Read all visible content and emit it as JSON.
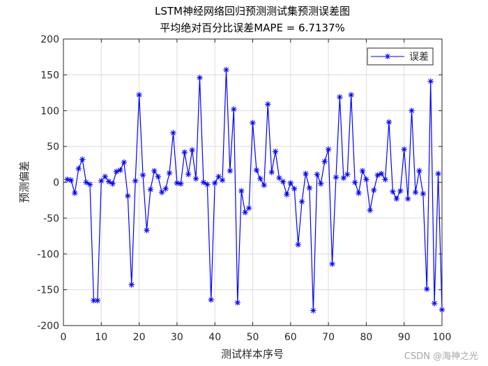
{
  "chart_data": {
    "type": "line",
    "title": "LSTM神经网络回归预测测试集预测误差图",
    "subtitle": "平均绝对百分比误差MAPE = 6.7137%",
    "xlabel": "测试样本序号",
    "ylabel": "预测偏差",
    "xlim": [
      0,
      100
    ],
    "ylim": [
      -200,
      200
    ],
    "xticks": [
      "0",
      "10",
      "20",
      "30",
      "40",
      "50",
      "60",
      "70",
      "80",
      "90",
      "100"
    ],
    "yticks": [
      "-200",
      "-150",
      "-100",
      "-50",
      "0",
      "50",
      "100",
      "150",
      "200"
    ],
    "grid": true,
    "legend_position": "top-right",
    "series": [
      {
        "name": "误差",
        "color": "#0000ff",
        "marker": "asterisk",
        "x": [
          1,
          2,
          3,
          4,
          5,
          6,
          7,
          8,
          9,
          10,
          11,
          12,
          13,
          14,
          15,
          16,
          17,
          18,
          19,
          20,
          21,
          22,
          23,
          24,
          25,
          26,
          27,
          28,
          29,
          30,
          31,
          32,
          33,
          34,
          35,
          36,
          37,
          38,
          39,
          40,
          41,
          42,
          43,
          44,
          45,
          46,
          47,
          48,
          49,
          50,
          51,
          52,
          53,
          54,
          55,
          56,
          57,
          58,
          59,
          60,
          61,
          62,
          63,
          64,
          65,
          66,
          67,
          68,
          69,
          70,
          71,
          72,
          73,
          74,
          75,
          76,
          77,
          78,
          79,
          80,
          81,
          82,
          83,
          84,
          85,
          86,
          87,
          88,
          89,
          90,
          91,
          92,
          93,
          94,
          95,
          96,
          97,
          98,
          99,
          100
        ],
        "values": [
          4,
          3,
          -15,
          19,
          32,
          0,
          -3,
          -165,
          -165,
          2,
          8,
          1,
          -2,
          15,
          17,
          28,
          -19,
          -143,
          2,
          122,
          10,
          -67,
          -10,
          16,
          8,
          -14,
          -9,
          13,
          69,
          -1,
          -2,
          42,
          11,
          45,
          5,
          146,
          0,
          -3,
          -164,
          -1,
          8,
          3,
          157,
          16,
          102,
          -168,
          -12,
          -42,
          -36,
          83,
          17,
          5,
          -4,
          109,
          14,
          43,
          6,
          1,
          -17,
          -1,
          -9,
          -87,
          -27,
          12,
          -8,
          -179,
          11,
          -2,
          29,
          46,
          -114,
          7,
          119,
          6,
          11,
          122,
          0,
          -15,
          16,
          4,
          -39,
          -11,
          10,
          12,
          4,
          84,
          -13,
          -23,
          -12,
          46,
          -23,
          100,
          -14,
          16,
          -16,
          -149,
          141,
          -169,
          12,
          -178
        ]
      }
    ]
  },
  "watermark": "CSDN @海神之光"
}
